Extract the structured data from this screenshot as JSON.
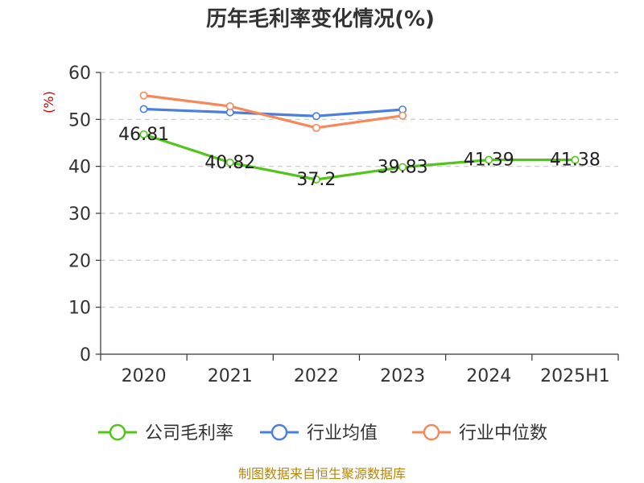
{
  "chart_data": {
    "type": "line",
    "title": "历年毛利率变化情况(%)",
    "ylabel": "(%)",
    "ylim": [
      0,
      60
    ],
    "yticks": [
      0,
      10,
      20,
      30,
      40,
      50,
      60
    ],
    "categories": [
      "2020",
      "2021",
      "2022",
      "2023",
      "2024",
      "2025H1"
    ],
    "grid": "horizontal-dashed",
    "legend_position": "bottom",
    "series": [
      {
        "name": "公司毛利率",
        "color": "#52c41a",
        "values": [
          46.81,
          40.82,
          37.2,
          39.83,
          41.39,
          41.38
        ],
        "labels": [
          "46.81",
          "40.82",
          "37.2",
          "39.83",
          "41.39",
          "41.38"
        ]
      },
      {
        "name": "行业均值",
        "color": "#4a7fe0",
        "values": [
          52.2,
          51.5,
          50.7,
          52.1,
          null,
          null
        ]
      },
      {
        "name": "行业中位数",
        "color": "#f5895a",
        "values": [
          55.1,
          52.8,
          48.2,
          50.8,
          null,
          null
        ]
      }
    ]
  },
  "source": "制图数据来自恒生聚源数据库"
}
